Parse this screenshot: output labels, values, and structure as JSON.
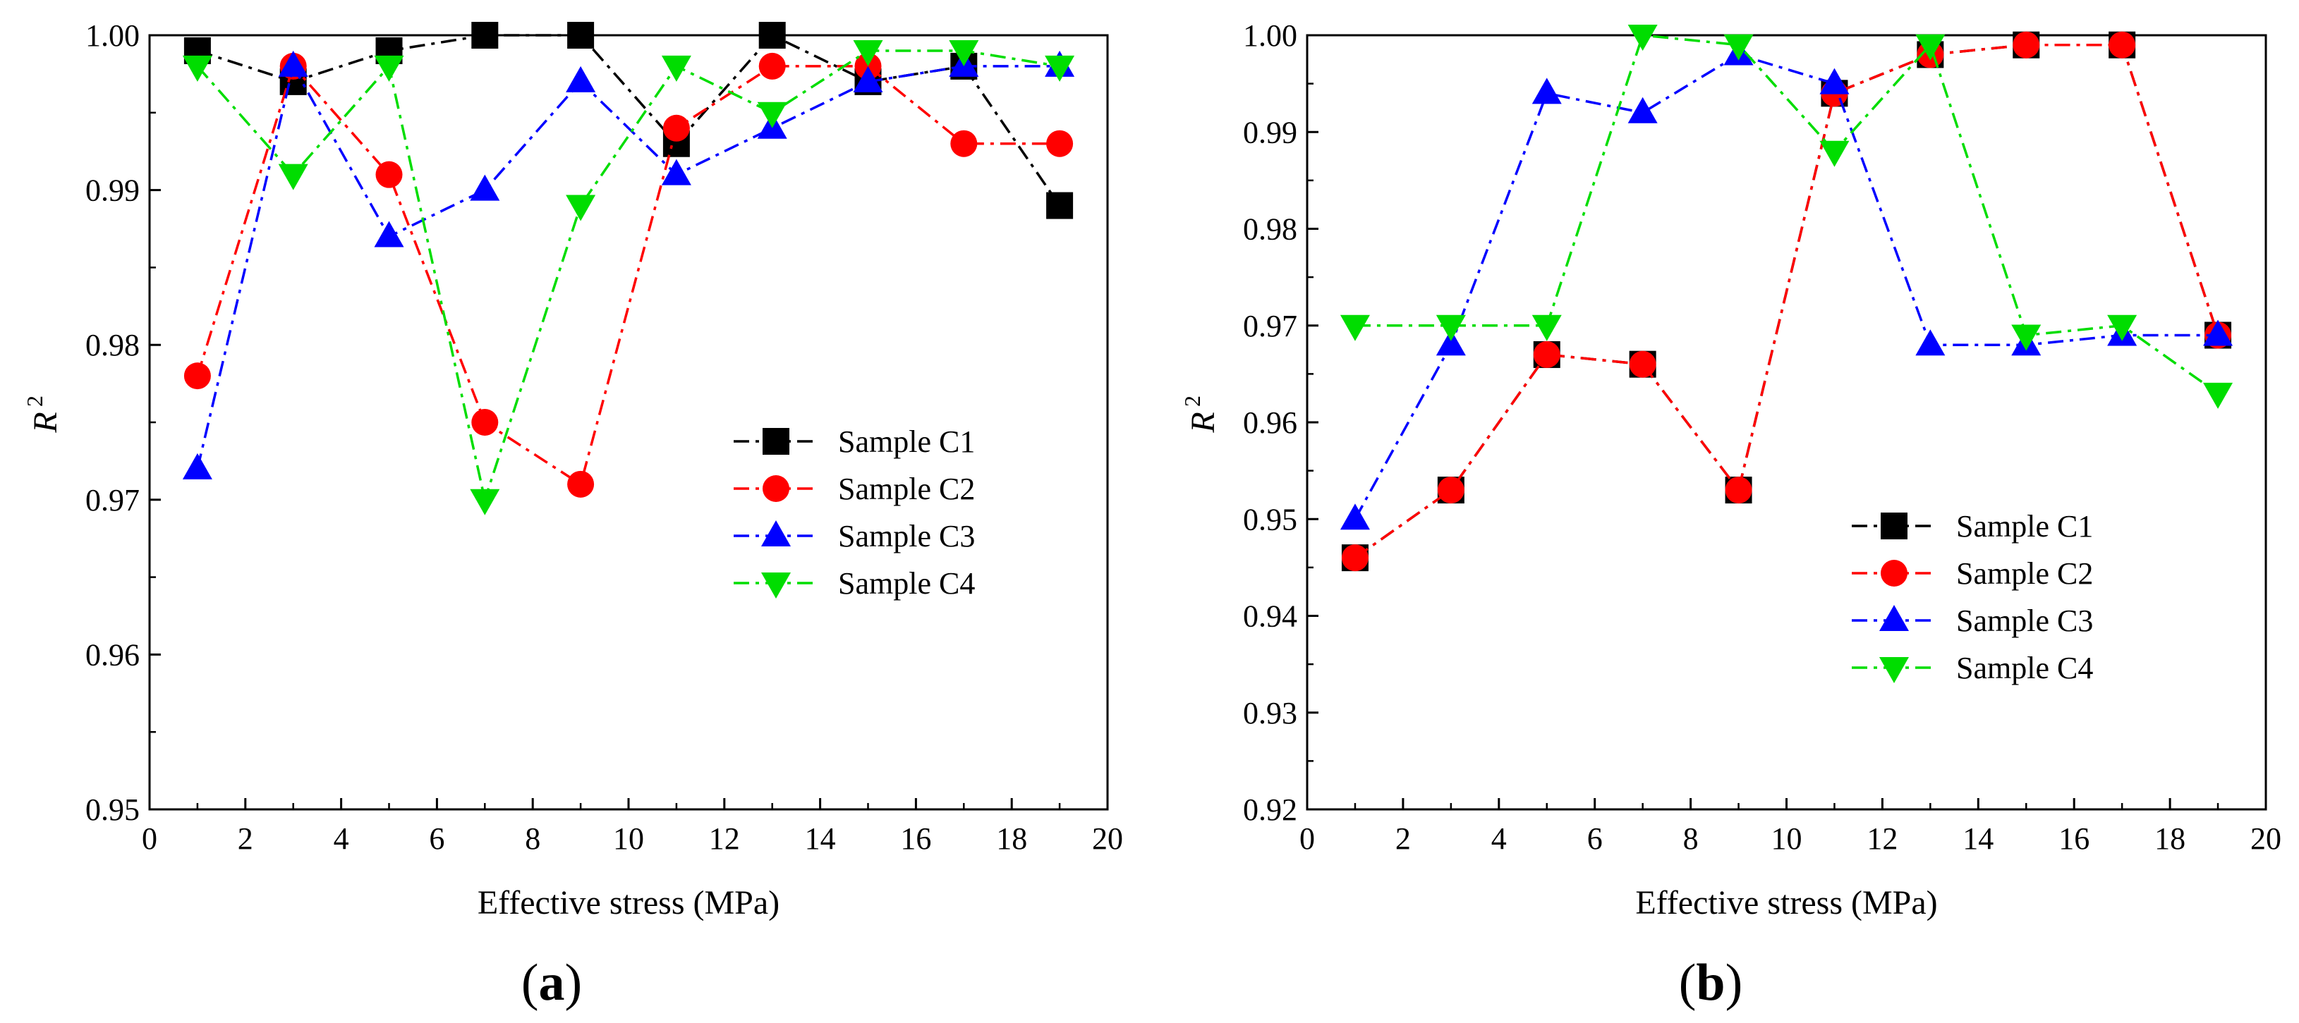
{
  "chart_data": [
    {
      "type": "line",
      "panel_label": "a",
      "xlabel": "Effective stress (MPa)",
      "ylabel": "R",
      "ylabel_sup": "2",
      "xlim": [
        0,
        20
      ],
      "ylim": [
        0.95,
        1.0
      ],
      "xticks": [
        "0",
        "2",
        "4",
        "6",
        "8",
        "10",
        "12",
        "14",
        "16",
        "18",
        "20"
      ],
      "yticks": [
        "0.95",
        "0.96",
        "0.97",
        "0.98",
        "0.99",
        "1.00"
      ],
      "legend_position": "center-right",
      "x": [
        1,
        3,
        5,
        7,
        9,
        11,
        13,
        15,
        17,
        19
      ],
      "series": [
        {
          "name": "Sample C1",
          "color": "#000000",
          "marker": "square",
          "values": [
            0.999,
            0.997,
            0.999,
            1.0,
            1.0,
            0.993,
            1.0,
            0.997,
            0.998,
            0.989
          ]
        },
        {
          "name": "Sample C2",
          "color": "#ff0000",
          "marker": "circle",
          "values": [
            0.978,
            0.998,
            0.991,
            0.975,
            0.971,
            0.994,
            0.998,
            0.998,
            0.993,
            0.993
          ]
        },
        {
          "name": "Sample C3",
          "color": "#0000ff",
          "marker": "triangle-up",
          "values": [
            0.972,
            0.998,
            0.987,
            0.99,
            0.997,
            0.991,
            0.994,
            0.997,
            0.998,
            0.998
          ]
        },
        {
          "name": "Sample C4",
          "color": "#00dd00",
          "marker": "triangle-down",
          "values": [
            0.998,
            0.991,
            0.998,
            0.97,
            0.989,
            0.998,
            0.995,
            0.999,
            0.999,
            0.998
          ]
        }
      ]
    },
    {
      "type": "line",
      "panel_label": "b",
      "xlabel": "Effective stress (MPa)",
      "ylabel": "R",
      "ylabel_sup": "2",
      "xlim": [
        0,
        20
      ],
      "ylim": [
        0.92,
        1.0
      ],
      "xticks": [
        "0",
        "2",
        "4",
        "6",
        "8",
        "10",
        "12",
        "14",
        "16",
        "18",
        "20"
      ],
      "yticks": [
        "0.92",
        "0.93",
        "0.94",
        "0.95",
        "0.96",
        "0.97",
        "0.98",
        "0.99",
        "1.00"
      ],
      "legend_position": "lower-right",
      "x": [
        1,
        3,
        5,
        7,
        9,
        11,
        13,
        15,
        17,
        19
      ],
      "series": [
        {
          "name": "Sample C1",
          "color": "#000000",
          "marker": "square",
          "values": [
            0.946,
            0.953,
            0.967,
            0.966,
            0.953,
            0.994,
            0.998,
            0.999,
            0.999,
            0.969
          ]
        },
        {
          "name": "Sample C2",
          "color": "#ff0000",
          "marker": "circle",
          "values": [
            0.946,
            0.953,
            0.967,
            0.966,
            0.953,
            0.994,
            0.998,
            0.999,
            0.999,
            0.969
          ]
        },
        {
          "name": "Sample C3",
          "color": "#0000ff",
          "marker": "triangle-up",
          "values": [
            0.95,
            0.968,
            0.994,
            0.992,
            0.998,
            0.995,
            0.968,
            0.968,
            0.969,
            0.969
          ]
        },
        {
          "name": "Sample C4",
          "color": "#00dd00",
          "marker": "triangle-down",
          "values": [
            0.97,
            0.97,
            0.97,
            1.0,
            0.999,
            0.988,
            0.999,
            0.969,
            0.97,
            0.963
          ]
        }
      ]
    }
  ]
}
